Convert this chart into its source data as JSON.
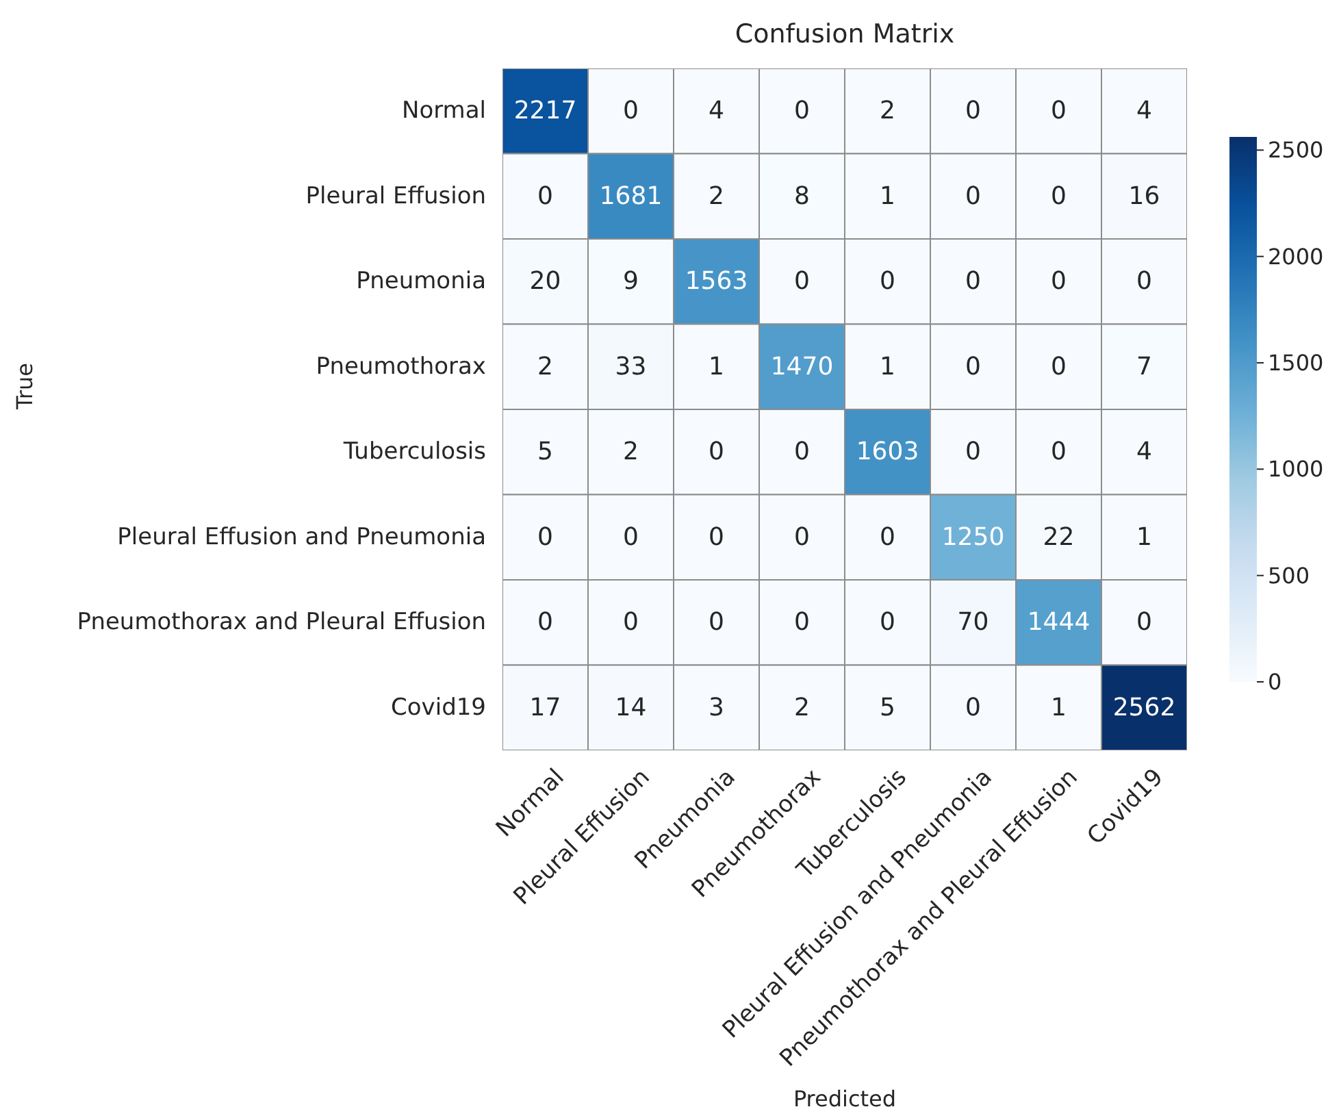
{
  "chart_data": {
    "type": "heatmap",
    "title": "Confusion Matrix",
    "xlabel": "Predicted",
    "ylabel": "True",
    "categories": [
      "Normal",
      "Pleural Effusion",
      "Pneumonia",
      "Pneumothorax",
      "Tuberculosis",
      "Pleural Effusion and Pneumonia",
      "Pneumothorax and Pleural Effusion",
      "Covid19"
    ],
    "y_categories": [
      "Normal",
      "Pleural Effusion",
      "Pneumonia",
      "Pneumothorax",
      "Tuberculosis",
      "Pleural Effusion and Pneumonia",
      "Pneumothorax and Pleural Effusion",
      "Covid19"
    ],
    "cells": [
      [
        2217,
        0,
        4,
        0,
        2,
        0,
        0,
        4
      ],
      [
        0,
        1681,
        2,
        8,
        1,
        0,
        0,
        16
      ],
      [
        20,
        9,
        1563,
        0,
        0,
        0,
        0,
        0
      ],
      [
        2,
        33,
        1,
        1470,
        1,
        0,
        0,
        7
      ],
      [
        5,
        2,
        0,
        0,
        1603,
        0,
        0,
        4
      ],
      [
        0,
        0,
        0,
        0,
        0,
        1250,
        22,
        1
      ],
      [
        0,
        0,
        0,
        0,
        0,
        70,
        1444,
        0
      ],
      [
        17,
        14,
        3,
        2,
        5,
        0,
        1,
        2562
      ]
    ],
    "data_labels": true,
    "clim": [
      0,
      2562
    ],
    "cticks": [
      0,
      500,
      1000,
      1500,
      2000,
      2500
    ]
  }
}
